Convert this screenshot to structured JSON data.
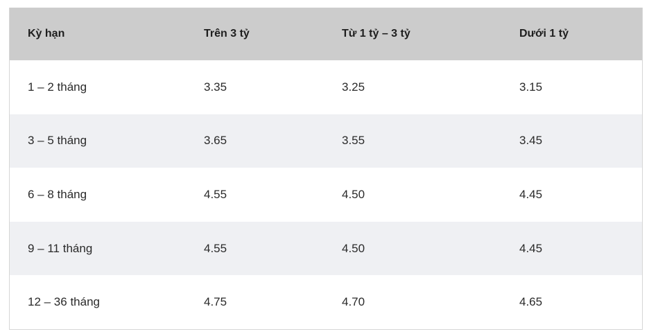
{
  "table": {
    "header": [
      "Kỳ hạn",
      "Trên 3 tỷ",
      "Từ 1 tỷ – 3 tỷ",
      "Dưới 1 tỷ"
    ],
    "rows": [
      [
        "1 – 2 tháng",
        "3.35",
        "3.25",
        "3.15"
      ],
      [
        "3 – 5 tháng",
        "3.65",
        "3.55",
        "3.45"
      ],
      [
        "6 – 8 tháng",
        "4.55",
        "4.50",
        "4.45"
      ],
      [
        "9 – 11 tháng",
        "4.55",
        "4.50",
        "4.45"
      ],
      [
        "12 – 36 tháng",
        "4.75",
        "4.70",
        "4.65"
      ]
    ]
  }
}
